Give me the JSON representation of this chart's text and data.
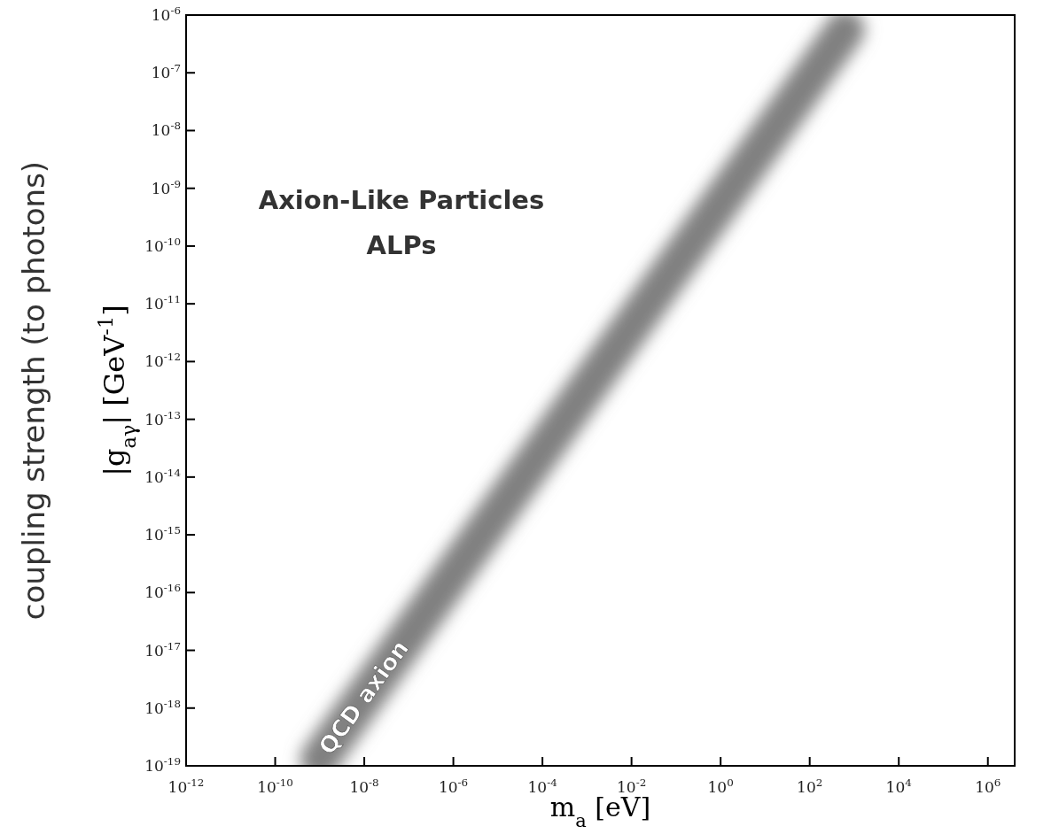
{
  "chart_data": {
    "type": "line",
    "xlabel": "m$_{a}$ [eV]",
    "ylabel": "|g$_{aγ}$| [GeV$^{-1}$]",
    "log": "xy",
    "grid": false,
    "xlim": [
      1e-12,
      4000000.0
    ],
    "xticks": [
      {
        "value": 1e-12,
        "label": "10$^{-12}$"
      },
      {
        "value": 1e-10,
        "label": "10$^{-10}$"
      },
      {
        "value": 1e-08,
        "label": "10$^{-8}$"
      },
      {
        "value": 1e-06,
        "label": "10$^{-6}$"
      },
      {
        "value": 0.0001,
        "label": "10$^{-4}$"
      },
      {
        "value": 0.01,
        "label": "10$^{-2}$"
      },
      {
        "value": 1,
        "label": "10$^{0}$"
      },
      {
        "value": 100,
        "label": "10$^{2}$"
      },
      {
        "value": 10000.0,
        "label": "10$^{4}$"
      },
      {
        "value": 1000000.0,
        "label": "10$^{6}$"
      }
    ],
    "ylim": [
      1e-19,
      1e-06
    ],
    "yticks": [
      {
        "value": 1e-19,
        "label": "10$^{-19}$"
      },
      {
        "value": 1e-18,
        "label": "10$^{-18}$"
      },
      {
        "value": 1e-17,
        "label": "10$^{-17}$"
      },
      {
        "value": 1e-16,
        "label": "10$^{-16}$"
      },
      {
        "value": 1e-15,
        "label": "10$^{-15}$"
      },
      {
        "value": 1e-14,
        "label": "10$^{-14}$"
      },
      {
        "value": 1e-13,
        "label": "10$^{-13}$"
      },
      {
        "value": 1e-12,
        "label": "10$^{-12}$"
      },
      {
        "value": 1e-11,
        "label": "10$^{-11}$"
      },
      {
        "value": 1e-10,
        "label": "10$^{-10}$"
      },
      {
        "value": 1e-09,
        "label": "10$^{-9}$"
      },
      {
        "value": 1e-08,
        "label": "10$^{-8}$"
      },
      {
        "value": 1e-07,
        "label": "10$^{-7}$"
      },
      {
        "value": 1e-06,
        "label": "10$^{-6}$"
      }
    ],
    "series": [
      {
        "color": "#808080",
        "x": [
          1e-09,
          1e-07,
          1e-05,
          0.001,
          0.1,
          10,
          100,
          630
        ],
        "values": [
          1.3e-19,
          1.8e-17,
          2.5e-15,
          3.5e-13,
          4.8e-11,
          6.6e-09,
          7.8e-08,
          5.6e-07
        ]
      }
    ],
    "annotations": [
      "Axion-Like Particles",
      "ALPs",
      "coupling strength (to photons)",
      {
        "text": "QCD axion",
        "x": 1e-08,
        "y": 1.5e-18
      }
    ]
  }
}
